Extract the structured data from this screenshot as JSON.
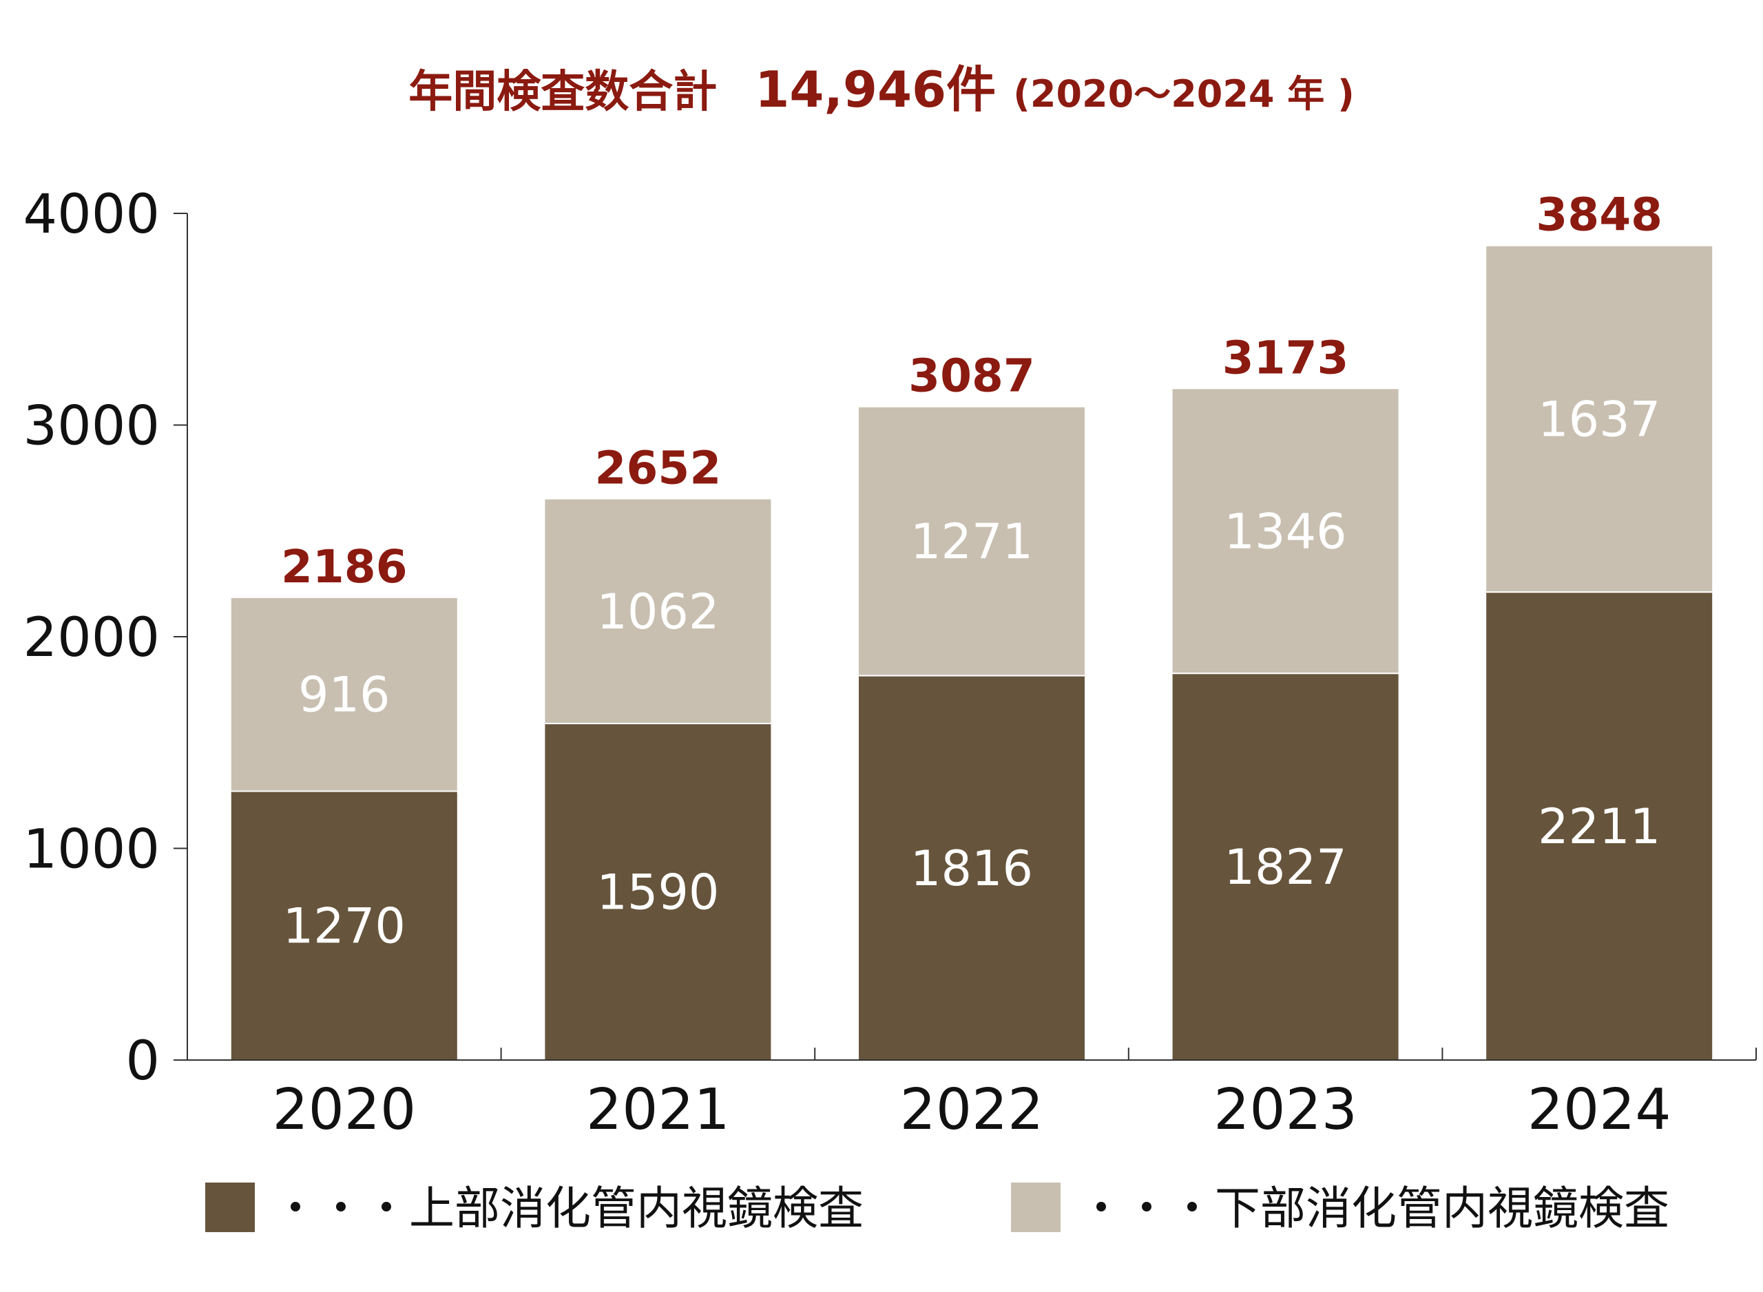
{
  "chart_data": {
    "type": "bar",
    "stacked": true,
    "title_main": "年間検査数合計",
    "title_total": "14,946件",
    "title_period": "(2020〜2024 年 )",
    "categories": [
      "2020",
      "2021",
      "2022",
      "2023",
      "2024"
    ],
    "series": [
      {
        "name": "上部消化管内視鏡検査",
        "legend_label": "・・・上部消化管内視鏡検査",
        "values": [
          1270,
          1590,
          1816,
          1827,
          2211
        ],
        "labels": [
          "1270",
          "1590",
          "1816",
          "1827",
          "2211"
        ],
        "color": "#66543c"
      },
      {
        "name": "下部消化管内視鏡検査",
        "legend_label": "・・・下部消化管内視鏡検査",
        "values": [
          916,
          1062,
          1271,
          1346,
          1637
        ],
        "labels": [
          "916",
          "1062",
          "1271",
          "1346",
          "1637"
        ],
        "color": "#c8bfb1"
      }
    ],
    "totals": [
      2186,
      2652,
      3087,
      3173,
      3848
    ],
    "total_labels": [
      "2186",
      "2652",
      "3087",
      "3173",
      "3848"
    ],
    "ylim": [
      0,
      4000
    ],
    "yticks": [
      0,
      1000,
      2000,
      3000,
      4000
    ],
    "ytick_labels": [
      "0",
      "1000",
      "2000",
      "3000",
      "4000"
    ],
    "xlabel": "",
    "ylabel": "",
    "grid": false,
    "legend_position": "bottom",
    "colors": {
      "title": "#8b1a10",
      "totals": "#8b1a10",
      "axis": "#333333",
      "text": "#111111"
    }
  }
}
